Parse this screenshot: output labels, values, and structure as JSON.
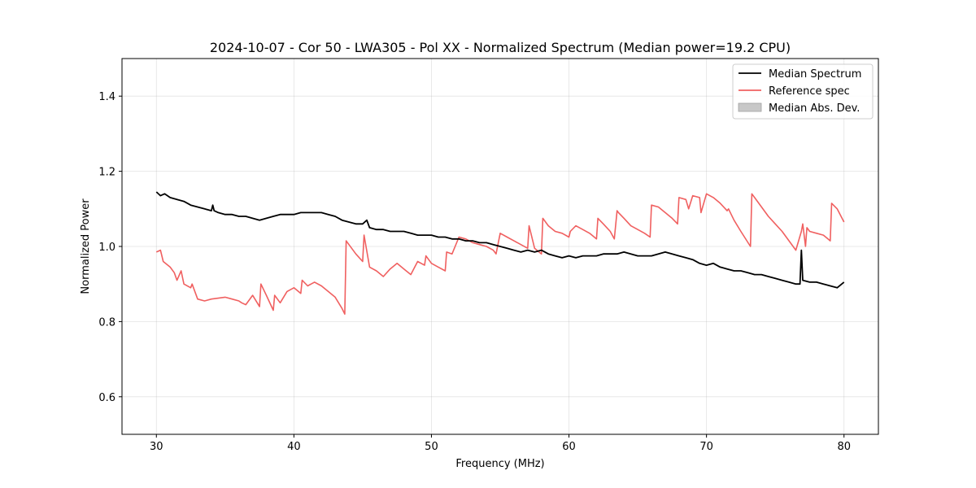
{
  "chart_data": {
    "type": "line",
    "title": "2024-10-07 - Cor 50 - LWA305 - Pol XX - Normalized Spectrum (Median power=19.2 CPU)",
    "xlabel": "Frequency (MHz)",
    "ylabel": "Normalized Power",
    "xlim": [
      27.5,
      82.5
    ],
    "ylim": [
      0.5,
      1.5
    ],
    "xticks": [
      30,
      40,
      50,
      60,
      70,
      80
    ],
    "yticks": [
      0.6,
      0.8,
      1.0,
      1.2,
      1.4
    ],
    "xtick_labels": [
      "30",
      "40",
      "50",
      "60",
      "70",
      "80"
    ],
    "ytick_labels": [
      "0.6",
      "0.8",
      "1.0",
      "1.2",
      "1.4"
    ],
    "grid": true,
    "legend_position": "top-right",
    "legend": [
      {
        "label": "Median Spectrum",
        "kind": "line",
        "color": "#000000"
      },
      {
        "label": "Reference spec",
        "kind": "line",
        "color": "#f06060"
      },
      {
        "label": "Median Abs. Dev.",
        "kind": "patch",
        "color": "#c8c8c8"
      }
    ],
    "series": [
      {
        "name": "Median Spectrum",
        "color": "#000000",
        "x": [
          30.0,
          30.3,
          30.6,
          31.0,
          31.5,
          32.0,
          32.5,
          33.0,
          33.5,
          34.0,
          34.1,
          34.2,
          34.5,
          35.0,
          35.5,
          36.0,
          36.5,
          37.0,
          37.5,
          38.0,
          38.5,
          39.0,
          39.5,
          40.0,
          40.5,
          41.0,
          41.5,
          42.0,
          42.5,
          43.0,
          43.5,
          44.0,
          44.5,
          45.0,
          45.3,
          45.5,
          46.0,
          46.5,
          47.0,
          47.5,
          48.0,
          48.5,
          49.0,
          49.5,
          50.0,
          50.5,
          51.0,
          51.5,
          52.0,
          52.5,
          53.0,
          53.5,
          54.0,
          54.5,
          55.0,
          55.5,
          56.0,
          56.5,
          57.0,
          57.5,
          58.0,
          58.5,
          59.0,
          59.5,
          60.0,
          60.5,
          61.0,
          61.5,
          62.0,
          62.5,
          63.0,
          63.5,
          64.0,
          64.5,
          65.0,
          65.5,
          66.0,
          66.5,
          67.0,
          67.5,
          68.0,
          68.5,
          69.0,
          69.5,
          70.0,
          70.5,
          71.0,
          71.5,
          72.0,
          72.5,
          73.0,
          73.5,
          74.0,
          74.5,
          75.0,
          75.5,
          76.0,
          76.5,
          76.8,
          76.9,
          77.0,
          77.5,
          78.0,
          78.5,
          79.0,
          79.5,
          80.0
        ],
        "y": [
          1.145,
          1.135,
          1.14,
          1.13,
          1.125,
          1.12,
          1.11,
          1.105,
          1.1,
          1.095,
          1.11,
          1.095,
          1.09,
          1.085,
          1.085,
          1.08,
          1.08,
          1.075,
          1.07,
          1.075,
          1.08,
          1.085,
          1.085,
          1.085,
          1.09,
          1.09,
          1.09,
          1.09,
          1.085,
          1.08,
          1.07,
          1.065,
          1.06,
          1.06,
          1.07,
          1.05,
          1.045,
          1.045,
          1.04,
          1.04,
          1.04,
          1.035,
          1.03,
          1.03,
          1.03,
          1.025,
          1.025,
          1.02,
          1.02,
          1.015,
          1.015,
          1.01,
          1.01,
          1.005,
          1.0,
          0.995,
          0.99,
          0.985,
          0.99,
          0.985,
          0.99,
          0.98,
          0.975,
          0.97,
          0.975,
          0.97,
          0.975,
          0.975,
          0.975,
          0.98,
          0.98,
          0.98,
          0.985,
          0.98,
          0.975,
          0.975,
          0.975,
          0.98,
          0.985,
          0.98,
          0.975,
          0.97,
          0.965,
          0.955,
          0.95,
          0.955,
          0.945,
          0.94,
          0.935,
          0.935,
          0.93,
          0.925,
          0.925,
          0.92,
          0.915,
          0.91,
          0.905,
          0.9,
          0.9,
          0.99,
          0.91,
          0.905,
          0.905,
          0.9,
          0.895,
          0.89,
          0.905
        ]
      },
      {
        "name": "Reference spec",
        "color": "#f06060",
        "x": [
          30.0,
          30.3,
          30.5,
          31.0,
          31.3,
          31.5,
          31.8,
          32.0,
          32.5,
          32.6,
          33.0,
          33.5,
          34.0,
          35.0,
          35.5,
          36.0,
          36.2,
          36.5,
          37.0,
          37.5,
          37.6,
          38.0,
          38.5,
          38.6,
          39.0,
          39.5,
          40.0,
          40.5,
          40.6,
          41.0,
          41.5,
          42.0,
          42.5,
          43.0,
          43.5,
          43.7,
          43.8,
          44.0,
          44.5,
          45.0,
          45.1,
          45.5,
          46.0,
          46.5,
          47.0,
          47.5,
          48.0,
          48.5,
          49.0,
          49.5,
          49.6,
          50.0,
          50.5,
          51.0,
          51.1,
          51.5,
          52.0,
          52.5,
          53.0,
          53.5,
          54.0,
          54.5,
          54.7,
          55.0,
          55.5,
          56.0,
          56.5,
          57.0,
          57.1,
          57.5,
          58.0,
          58.1,
          58.5,
          59.0,
          59.5,
          60.0,
          60.1,
          60.5,
          61.0,
          61.5,
          62.0,
          62.1,
          62.5,
          63.0,
          63.3,
          63.5,
          63.6,
          64.0,
          64.5,
          65.0,
          65.5,
          65.9,
          66.0,
          66.5,
          67.0,
          67.5,
          67.9,
          68.0,
          68.5,
          68.7,
          69.0,
          69.5,
          69.6,
          70.0,
          70.5,
          71.0,
          71.5,
          71.6,
          72.0,
          72.5,
          73.2,
          73.3,
          73.5,
          74.0,
          74.5,
          75.0,
          75.5,
          76.0,
          76.5,
          76.9,
          77.0,
          77.2,
          77.3,
          77.5,
          78.0,
          78.5,
          79.0,
          79.1,
          79.5,
          80.0
        ],
        "y": [
          0.985,
          0.99,
          0.96,
          0.945,
          0.93,
          0.91,
          0.935,
          0.9,
          0.89,
          0.9,
          0.86,
          0.855,
          0.86,
          0.865,
          0.86,
          0.855,
          0.85,
          0.845,
          0.87,
          0.84,
          0.9,
          0.87,
          0.83,
          0.87,
          0.85,
          0.88,
          0.89,
          0.875,
          0.91,
          0.895,
          0.905,
          0.895,
          0.88,
          0.865,
          0.835,
          0.82,
          1.015,
          1.005,
          0.98,
          0.96,
          1.03,
          0.945,
          0.935,
          0.92,
          0.94,
          0.955,
          0.94,
          0.925,
          0.96,
          0.95,
          0.975,
          0.955,
          0.945,
          0.935,
          0.985,
          0.98,
          1.025,
          1.02,
          1.01,
          1.005,
          1.0,
          0.99,
          0.98,
          1.035,
          1.025,
          1.015,
          1.005,
          0.995,
          1.055,
          0.995,
          0.98,
          1.075,
          1.055,
          1.04,
          1.035,
          1.025,
          1.04,
          1.055,
          1.045,
          1.035,
          1.02,
          1.075,
          1.06,
          1.04,
          1.02,
          1.095,
          1.09,
          1.075,
          1.055,
          1.045,
          1.035,
          1.025,
          1.11,
          1.105,
          1.09,
          1.075,
          1.06,
          1.13,
          1.125,
          1.1,
          1.135,
          1.13,
          1.09,
          1.14,
          1.13,
          1.115,
          1.095,
          1.1,
          1.07,
          1.04,
          1.0,
          1.14,
          1.13,
          1.105,
          1.08,
          1.06,
          1.04,
          1.015,
          0.99,
          1.04,
          1.06,
          1.0,
          1.05,
          1.04,
          1.035,
          1.03,
          1.015,
          1.115,
          1.1,
          1.065
        ]
      }
    ]
  }
}
